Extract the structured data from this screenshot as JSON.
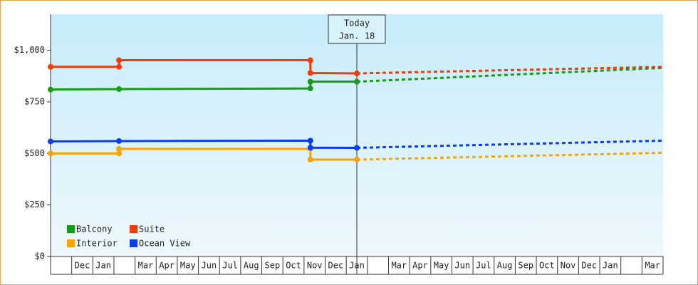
{
  "chart_data": {
    "type": "line",
    "categories": [
      null,
      "Dec",
      "Jan",
      null,
      "Mar",
      "Apr",
      "May",
      "Jun",
      "Jul",
      "Aug",
      "Sep",
      "Oct",
      "Nov",
      "Dec",
      "Jan",
      null,
      "Mar",
      "Apr",
      "May",
      "Jun",
      "Jul",
      "Aug",
      "Sep",
      "Oct",
      "Nov",
      "Dec",
      "Jan",
      null,
      "Mar"
    ],
    "xlim": [
      0,
      29
    ],
    "ylim": [
      0,
      1175
    ],
    "yticks": [
      {
        "value": 0,
        "label": "$0"
      },
      {
        "value": 250,
        "label": "$250"
      },
      {
        "value": 500,
        "label": "$500"
      },
      {
        "value": 750,
        "label": "$750"
      },
      {
        "value": 1000,
        "label": "$1,000"
      }
    ],
    "series": [
      {
        "name": "Balcony",
        "color": "#1a9a1a",
        "x": [
          0,
          3.24,
          12.3,
          12.3,
          14.5
        ],
        "values": [
          810,
          812,
          815,
          848,
          848
        ],
        "forecast_x": [
          14.5,
          29
        ],
        "forecast_values": [
          848,
          915
        ]
      },
      {
        "name": "Suite",
        "color": "#f03c0a",
        "x": [
          0,
          3.24,
          3.24,
          12.3,
          12.3,
          14.5
        ],
        "values": [
          920,
          920,
          952,
          952,
          890,
          888
        ],
        "forecast_x": [
          14.5,
          29
        ],
        "forecast_values": [
          888,
          920
        ]
      },
      {
        "name": "Interior",
        "color": "#f5a50a",
        "x": [
          0,
          3.24,
          3.24,
          12.3,
          12.3,
          14.5
        ],
        "values": [
          500,
          500,
          522,
          522,
          470,
          470
        ],
        "forecast_x": [
          14.5,
          29
        ],
        "forecast_values": [
          470,
          503
        ]
      },
      {
        "name": "Ocean View",
        "color": "#0a3cf0",
        "x": [
          0,
          3.24,
          12.3,
          12.3,
          14.5
        ],
        "values": [
          558,
          560,
          562,
          528,
          527
        ],
        "forecast_x": [
          14.5,
          29
        ],
        "forecast_values": [
          527,
          562
        ]
      }
    ],
    "annotation": {
      "x": 14.5,
      "lines": [
        "Today",
        "Jan. 18"
      ]
    }
  }
}
